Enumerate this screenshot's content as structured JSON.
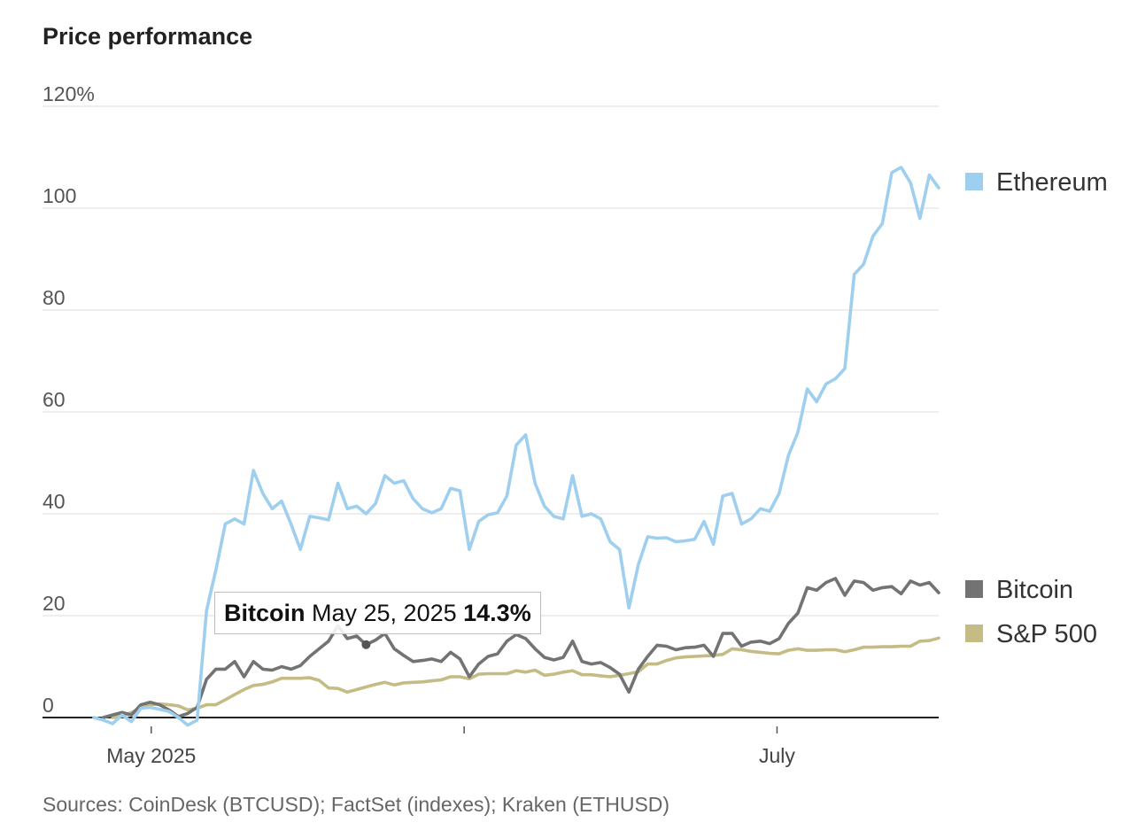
{
  "chart_data": {
    "type": "line",
    "title": "Price performance",
    "xlabel": "",
    "ylabel": "",
    "ylim": [
      -3,
      120
    ],
    "y_ticks": [
      0,
      20,
      40,
      60,
      80,
      100,
      120
    ],
    "y_tick_labels": [
      "0",
      "20",
      "40",
      "60",
      "80",
      "100",
      "120%"
    ],
    "x_tick_labels": [
      {
        "label": "May 2025",
        "day": 1
      },
      {
        "label": "",
        "day": 31
      },
      {
        "label": "July",
        "day": 61
      }
    ],
    "x_unit": "days since May 1, 2025 (ticks every ~calendar position)",
    "series": [
      {
        "name": "Ethereum",
        "color": "#9ecfee",
        "values": [
          [
            -4.5,
            0.0
          ],
          [
            -3.6,
            -0.5
          ],
          [
            -2.7,
            -1.2
          ],
          [
            -1.8,
            0.5
          ],
          [
            -0.9,
            -0.8
          ],
          [
            0.0,
            1.8
          ],
          [
            0.9,
            2.0
          ],
          [
            1.8,
            1.6
          ],
          [
            2.7,
            1.2
          ],
          [
            3.6,
            0.0
          ],
          [
            4.5,
            -1.5
          ],
          [
            5.4,
            -0.5
          ],
          [
            6.3,
            21.0
          ],
          [
            7.2,
            29.0
          ],
          [
            8.1,
            38.0
          ],
          [
            9.0,
            39.0
          ],
          [
            9.9,
            38.0
          ],
          [
            10.8,
            48.5
          ],
          [
            11.7,
            44.0
          ],
          [
            12.6,
            41.0
          ],
          [
            13.5,
            42.5
          ],
          [
            14.4,
            38.0
          ],
          [
            15.3,
            33.0
          ],
          [
            16.2,
            39.5
          ],
          [
            17.1,
            39.2
          ],
          [
            18.0,
            38.8
          ],
          [
            18.9,
            46.0
          ],
          [
            19.8,
            41.0
          ],
          [
            20.7,
            41.5
          ],
          [
            21.6,
            40.0
          ],
          [
            22.5,
            42.0
          ],
          [
            23.4,
            47.5
          ],
          [
            24.3,
            46.0
          ],
          [
            25.2,
            46.5
          ],
          [
            26.1,
            43.0
          ],
          [
            27.0,
            41.0
          ],
          [
            27.9,
            40.2
          ],
          [
            28.8,
            41.0
          ],
          [
            29.7,
            45.0
          ],
          [
            30.6,
            44.5
          ],
          [
            31.5,
            33.0
          ],
          [
            32.4,
            38.5
          ],
          [
            33.3,
            39.8
          ],
          [
            34.2,
            40.2
          ],
          [
            35.1,
            43.5
          ],
          [
            36.0,
            53.5
          ],
          [
            36.9,
            55.5
          ],
          [
            37.8,
            46.0
          ],
          [
            38.7,
            41.5
          ],
          [
            39.6,
            39.5
          ],
          [
            40.5,
            39.0
          ],
          [
            41.4,
            47.5
          ],
          [
            42.3,
            39.5
          ],
          [
            43.2,
            40.0
          ],
          [
            44.1,
            39.0
          ],
          [
            45.0,
            34.5
          ],
          [
            45.9,
            33.0
          ],
          [
            46.8,
            21.5
          ],
          [
            47.7,
            30.0
          ],
          [
            48.6,
            35.5
          ],
          [
            49.5,
            35.2
          ],
          [
            50.4,
            35.3
          ],
          [
            51.3,
            34.5
          ],
          [
            52.2,
            34.7
          ],
          [
            53.1,
            35.0
          ],
          [
            54.0,
            38.5
          ],
          [
            54.9,
            34.0
          ],
          [
            55.8,
            43.5
          ],
          [
            56.7,
            44.0
          ],
          [
            57.6,
            38.0
          ],
          [
            58.5,
            39.0
          ],
          [
            59.4,
            41.0
          ],
          [
            60.3,
            40.5
          ],
          [
            61.2,
            44.0
          ],
          [
            62.1,
            51.5
          ],
          [
            63.0,
            56.0
          ],
          [
            63.9,
            64.5
          ],
          [
            64.8,
            62.0
          ],
          [
            65.7,
            65.5
          ],
          [
            66.6,
            66.5
          ],
          [
            67.5,
            68.5
          ],
          [
            68.4,
            87.0
          ],
          [
            69.3,
            89.0
          ],
          [
            70.2,
            94.5
          ],
          [
            71.1,
            97.0
          ],
          [
            72.0,
            107.0
          ],
          [
            72.9,
            108.0
          ],
          [
            73.8,
            105.0
          ],
          [
            74.7,
            98.0
          ],
          [
            75.6,
            106.5
          ],
          [
            76.5,
            104.0
          ]
        ]
      },
      {
        "name": "Bitcoin",
        "color": "#737373",
        "values": [
          [
            -3.6,
            0.0
          ],
          [
            -2.7,
            0.5
          ],
          [
            -1.8,
            1.0
          ],
          [
            -0.9,
            0.5
          ],
          [
            0.0,
            2.5
          ],
          [
            0.9,
            3.0
          ],
          [
            1.8,
            2.5
          ],
          [
            2.7,
            1.5
          ],
          [
            3.6,
            0.2
          ],
          [
            4.5,
            0.8
          ],
          [
            5.4,
            2.0
          ],
          [
            6.3,
            7.5
          ],
          [
            7.2,
            9.5
          ],
          [
            8.1,
            9.5
          ],
          [
            9.0,
            11.0
          ],
          [
            9.9,
            8.0
          ],
          [
            10.8,
            11.0
          ],
          [
            11.7,
            9.5
          ],
          [
            12.6,
            9.3
          ],
          [
            13.5,
            10.0
          ],
          [
            14.4,
            9.5
          ],
          [
            15.3,
            10.2
          ],
          [
            16.2,
            12.0
          ],
          [
            17.1,
            13.5
          ],
          [
            18.0,
            15.0
          ],
          [
            18.9,
            18.0
          ],
          [
            19.8,
            15.5
          ],
          [
            20.7,
            16.0
          ],
          [
            21.6,
            14.3
          ],
          [
            22.5,
            15.2
          ],
          [
            23.4,
            16.5
          ],
          [
            24.3,
            13.5
          ],
          [
            25.2,
            12.2
          ],
          [
            26.1,
            11.0
          ],
          [
            27.0,
            11.2
          ],
          [
            27.9,
            11.5
          ],
          [
            28.8,
            11.0
          ],
          [
            29.7,
            12.8
          ],
          [
            30.6,
            11.5
          ],
          [
            31.5,
            8.0
          ],
          [
            32.4,
            10.5
          ],
          [
            33.3,
            12.0
          ],
          [
            34.2,
            12.5
          ],
          [
            35.1,
            15.0
          ],
          [
            36.0,
            16.3
          ],
          [
            36.9,
            15.5
          ],
          [
            37.8,
            13.5
          ],
          [
            38.7,
            11.8
          ],
          [
            39.6,
            11.3
          ],
          [
            40.5,
            11.8
          ],
          [
            41.4,
            15.0
          ],
          [
            42.3,
            11.0
          ],
          [
            43.2,
            10.5
          ],
          [
            44.1,
            10.8
          ],
          [
            45.0,
            9.8
          ],
          [
            45.9,
            8.5
          ],
          [
            46.8,
            5.0
          ],
          [
            47.7,
            9.5
          ],
          [
            48.6,
            12.0
          ],
          [
            49.5,
            14.2
          ],
          [
            50.4,
            14.0
          ],
          [
            51.3,
            13.3
          ],
          [
            52.2,
            13.7
          ],
          [
            53.1,
            13.8
          ],
          [
            54.0,
            14.2
          ],
          [
            54.9,
            12.0
          ],
          [
            55.8,
            16.5
          ],
          [
            56.7,
            16.5
          ],
          [
            57.6,
            14.0
          ],
          [
            58.5,
            14.8
          ],
          [
            59.4,
            15.0
          ],
          [
            60.3,
            14.5
          ],
          [
            61.2,
            15.5
          ],
          [
            62.1,
            18.5
          ],
          [
            63.0,
            20.5
          ],
          [
            63.9,
            25.5
          ],
          [
            64.8,
            25.0
          ],
          [
            65.7,
            26.5
          ],
          [
            66.6,
            27.3
          ],
          [
            67.5,
            24.0
          ],
          [
            68.4,
            26.8
          ],
          [
            69.3,
            26.5
          ],
          [
            70.2,
            25.0
          ],
          [
            71.1,
            25.5
          ],
          [
            72.0,
            25.7
          ],
          [
            72.9,
            24.3
          ],
          [
            73.8,
            26.8
          ],
          [
            74.7,
            26.0
          ],
          [
            75.6,
            26.5
          ],
          [
            76.5,
            24.5
          ]
        ]
      },
      {
        "name": "S&P 500",
        "color": "#c4bb85",
        "values": [
          [
            -2.7,
            0.0
          ],
          [
            -1.8,
            0.3
          ],
          [
            -0.9,
            1.0
          ],
          [
            0.0,
            1.8
          ],
          [
            0.9,
            2.5
          ],
          [
            1.8,
            2.7
          ],
          [
            2.7,
            2.5
          ],
          [
            3.6,
            2.3
          ],
          [
            4.5,
            1.5
          ],
          [
            5.4,
            1.8
          ],
          [
            6.3,
            2.5
          ],
          [
            7.2,
            2.5
          ],
          [
            8.1,
            3.5
          ],
          [
            9.0,
            4.5
          ],
          [
            9.9,
            5.5
          ],
          [
            10.8,
            6.3
          ],
          [
            11.7,
            6.5
          ],
          [
            12.6,
            7.0
          ],
          [
            13.5,
            7.7
          ],
          [
            14.4,
            7.7
          ],
          [
            15.3,
            7.7
          ],
          [
            16.2,
            7.8
          ],
          [
            17.1,
            7.3
          ],
          [
            18.0,
            5.8
          ],
          [
            18.9,
            5.7
          ],
          [
            19.8,
            5.0
          ],
          [
            20.7,
            5.5
          ],
          [
            21.6,
            6.0
          ],
          [
            22.5,
            6.5
          ],
          [
            23.4,
            6.9
          ],
          [
            24.3,
            6.4
          ],
          [
            25.2,
            6.8
          ],
          [
            26.1,
            6.9
          ],
          [
            27.0,
            7.0
          ],
          [
            27.9,
            7.2
          ],
          [
            28.8,
            7.4
          ],
          [
            29.7,
            8.0
          ],
          [
            30.6,
            8.0
          ],
          [
            31.5,
            7.6
          ],
          [
            32.4,
            8.5
          ],
          [
            33.3,
            8.6
          ],
          [
            34.2,
            8.6
          ],
          [
            35.1,
            8.6
          ],
          [
            36.0,
            9.2
          ],
          [
            36.9,
            8.9
          ],
          [
            37.8,
            9.3
          ],
          [
            38.7,
            8.3
          ],
          [
            39.6,
            8.5
          ],
          [
            40.5,
            8.9
          ],
          [
            41.4,
            9.2
          ],
          [
            42.3,
            8.4
          ],
          [
            43.2,
            8.4
          ],
          [
            44.1,
            8.2
          ],
          [
            45.0,
            8.0
          ],
          [
            45.9,
            8.3
          ],
          [
            46.8,
            8.6
          ],
          [
            47.7,
            9.0
          ],
          [
            48.6,
            10.5
          ],
          [
            49.5,
            10.5
          ],
          [
            50.4,
            11.2
          ],
          [
            51.3,
            11.7
          ],
          [
            52.2,
            11.9
          ],
          [
            53.1,
            12.0
          ],
          [
            54.0,
            12.1
          ],
          [
            54.9,
            12.2
          ],
          [
            55.8,
            12.4
          ],
          [
            56.7,
            13.5
          ],
          [
            57.6,
            13.3
          ],
          [
            58.5,
            13.0
          ],
          [
            59.4,
            12.8
          ],
          [
            60.3,
            12.6
          ],
          [
            61.2,
            12.5
          ],
          [
            62.1,
            13.2
          ],
          [
            63.0,
            13.5
          ],
          [
            63.9,
            13.2
          ],
          [
            64.8,
            13.2
          ],
          [
            65.7,
            13.3
          ],
          [
            66.6,
            13.3
          ],
          [
            67.5,
            12.9
          ],
          [
            68.4,
            13.3
          ],
          [
            69.3,
            13.8
          ],
          [
            70.2,
            13.8
          ],
          [
            71.1,
            13.9
          ],
          [
            72.0,
            13.9
          ],
          [
            72.9,
            14.0
          ],
          [
            73.8,
            14.0
          ],
          [
            74.7,
            15.0
          ],
          [
            75.6,
            15.1
          ],
          [
            76.5,
            15.6
          ]
        ]
      }
    ],
    "legend": [
      "Ethereum",
      "Bitcoin",
      "S&P 500"
    ],
    "legend_position": "right, at line ends",
    "tooltip": {
      "series": "Bitcoin",
      "date": "May 25, 2025",
      "value": "14.3%",
      "day": 21.6,
      "y": 14.3
    },
    "grid": true
  },
  "source_note": "Sources: CoinDesk (BTCUSD); FactSet (indexes); Kraken (ETHUSD)"
}
